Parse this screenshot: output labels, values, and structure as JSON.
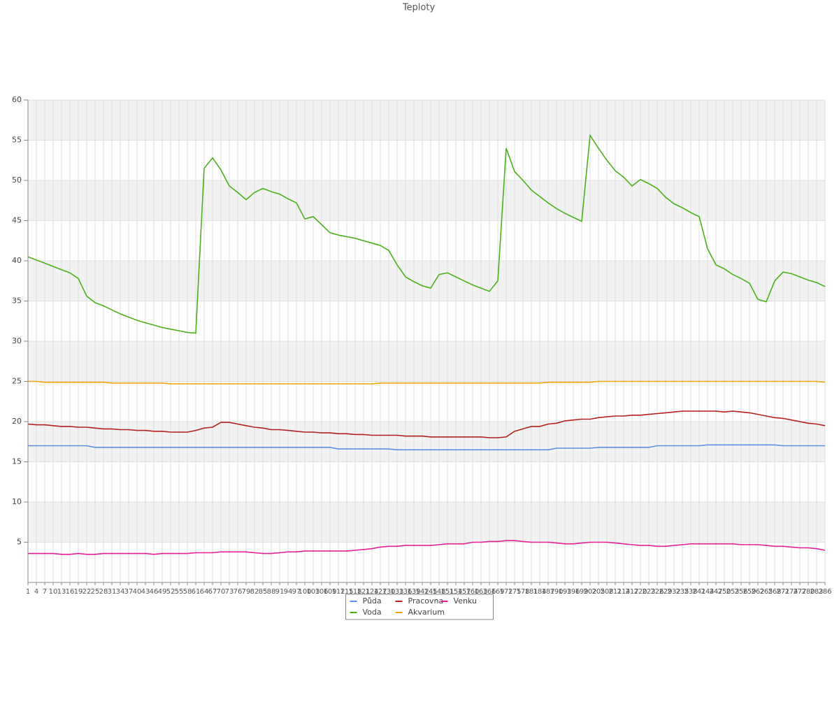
{
  "chart_data": {
    "type": "line",
    "title": "Teploty",
    "categories": [
      "1",
      "4",
      "7",
      "10",
      "13",
      "16",
      "19",
      "22",
      "25",
      "28",
      "31",
      "34",
      "37",
      "40",
      "43",
      "46",
      "49",
      "52",
      "55",
      "58",
      "61",
      "64",
      "67",
      "70",
      "73",
      "76",
      "79",
      "82",
      "85",
      "88",
      "91",
      "94",
      "97",
      "100",
      "103",
      "106",
      "109",
      "112",
      "115",
      "118",
      "121",
      "124",
      "127",
      "130",
      "133",
      "136",
      "139",
      "142",
      "145",
      "148",
      "151",
      "154",
      "157",
      "160",
      "163",
      "166",
      "169",
      "172",
      "175",
      "178",
      "181",
      "184",
      "187",
      "190",
      "193",
      "196",
      "199",
      "202",
      "205",
      "208",
      "211",
      "214",
      "217",
      "220",
      "223",
      "226",
      "229",
      "232",
      "235",
      "238",
      "241",
      "244",
      "247",
      "250",
      "253",
      "256",
      "259",
      "262",
      "265",
      "268",
      "271",
      "274",
      "277",
      "280",
      "283",
      "286"
    ],
    "ylim": [
      0,
      60
    ],
    "yticks": [
      5,
      10,
      15,
      20,
      25,
      30,
      35,
      40,
      45,
      50,
      55,
      60
    ],
    "grid": true,
    "legend": "bottom",
    "series": [
      {
        "name": "Půda",
        "color": "#5b8fe3",
        "values": [
          17.0,
          17.0,
          17.0,
          17.0,
          17.0,
          17.0,
          17.0,
          17.0,
          16.8,
          16.8,
          16.8,
          16.8,
          16.8,
          16.8,
          16.8,
          16.8,
          16.8,
          16.8,
          16.8,
          16.8,
          16.8,
          16.8,
          16.8,
          16.8,
          16.8,
          16.8,
          16.8,
          16.8,
          16.8,
          16.8,
          16.8,
          16.8,
          16.8,
          16.8,
          16.8,
          16.8,
          16.8,
          16.6,
          16.6,
          16.6,
          16.6,
          16.6,
          16.6,
          16.6,
          16.5,
          16.5,
          16.5,
          16.5,
          16.5,
          16.5,
          16.5,
          16.5,
          16.5,
          16.5,
          16.5,
          16.5,
          16.5,
          16.5,
          16.5,
          16.5,
          16.5,
          16.5,
          16.5,
          16.7,
          16.7,
          16.7,
          16.7,
          16.7,
          16.8,
          16.8,
          16.8,
          16.8,
          16.8,
          16.8,
          16.8,
          17.0,
          17.0,
          17.0,
          17.0,
          17.0,
          17.0,
          17.1,
          17.1,
          17.1,
          17.1,
          17.1,
          17.1,
          17.1,
          17.1,
          17.1,
          17.0,
          17.0,
          17.0,
          17.0,
          17.0,
          17.0
        ]
      },
      {
        "name": "Voda",
        "color": "#4cb01a",
        "values": [
          40.5,
          40.1,
          39.7,
          39.3,
          38.9,
          38.5,
          37.8,
          35.6,
          34.8,
          34.4,
          33.9,
          33.4,
          33.0,
          32.6,
          32.3,
          32.0,
          31.7,
          31.5,
          31.3,
          31.1,
          31.0,
          51.5,
          52.8,
          51.3,
          49.3,
          48.5,
          47.6,
          48.5,
          49.0,
          48.6,
          48.3,
          47.7,
          47.2,
          45.2,
          45.5,
          44.5,
          43.5,
          43.2,
          43.0,
          42.8,
          42.5,
          42.2,
          41.9,
          41.3,
          39.5,
          38.0,
          37.4,
          36.9,
          36.6,
          38.3,
          38.5,
          38.0,
          37.5,
          37.0,
          36.6,
          36.2,
          37.5,
          54.0,
          51.1,
          50.0,
          48.8,
          48.0,
          47.2,
          46.5,
          45.9,
          45.4,
          44.9,
          55.6,
          54.0,
          52.5,
          51.2,
          50.4,
          49.3,
          50.1,
          49.6,
          49.0,
          47.9,
          47.1,
          46.6,
          46.0,
          45.5,
          41.5,
          39.5,
          39.0,
          38.3,
          37.8,
          37.2,
          35.2,
          34.9,
          37.5,
          38.6,
          38.4,
          38.0,
          37.6,
          37.3,
          36.8
        ]
      },
      {
        "name": "Pracovna",
        "color": "#b3201f",
        "values": [
          19.7,
          19.6,
          19.6,
          19.5,
          19.4,
          19.4,
          19.3,
          19.3,
          19.2,
          19.1,
          19.1,
          19.0,
          19.0,
          18.9,
          18.9,
          18.8,
          18.8,
          18.7,
          18.7,
          18.7,
          18.9,
          19.2,
          19.3,
          19.9,
          19.9,
          19.7,
          19.5,
          19.3,
          19.2,
          19.0,
          19.0,
          18.9,
          18.8,
          18.7,
          18.7,
          18.6,
          18.6,
          18.5,
          18.5,
          18.4,
          18.4,
          18.3,
          18.3,
          18.3,
          18.3,
          18.2,
          18.2,
          18.2,
          18.1,
          18.1,
          18.1,
          18.1,
          18.1,
          18.1,
          18.1,
          18.0,
          18.0,
          18.1,
          18.8,
          19.1,
          19.4,
          19.4,
          19.7,
          19.8,
          20.1,
          20.2,
          20.3,
          20.3,
          20.5,
          20.6,
          20.7,
          20.7,
          20.8,
          20.8,
          20.9,
          21.0,
          21.1,
          21.2,
          21.3,
          21.3,
          21.3,
          21.3,
          21.3,
          21.2,
          21.3,
          21.2,
          21.1,
          20.9,
          20.7,
          20.5,
          20.4,
          20.2,
          20.0,
          19.8,
          19.7,
          19.5
        ]
      },
      {
        "name": "Akvarium",
        "color": "#f0a30a",
        "values": [
          25.0,
          25.0,
          24.9,
          24.9,
          24.9,
          24.9,
          24.9,
          24.9,
          24.9,
          24.9,
          24.8,
          24.8,
          24.8,
          24.8,
          24.8,
          24.8,
          24.8,
          24.7,
          24.7,
          24.7,
          24.7,
          24.7,
          24.7,
          24.7,
          24.7,
          24.7,
          24.7,
          24.7,
          24.7,
          24.7,
          24.7,
          24.7,
          24.7,
          24.7,
          24.7,
          24.7,
          24.7,
          24.7,
          24.7,
          24.7,
          24.7,
          24.7,
          24.8,
          24.8,
          24.8,
          24.8,
          24.8,
          24.8,
          24.8,
          24.8,
          24.8,
          24.8,
          24.8,
          24.8,
          24.8,
          24.8,
          24.8,
          24.8,
          24.8,
          24.8,
          24.8,
          24.8,
          24.9,
          24.9,
          24.9,
          24.9,
          24.9,
          24.9,
          25.0,
          25.0,
          25.0,
          25.0,
          25.0,
          25.0,
          25.0,
          25.0,
          25.0,
          25.0,
          25.0,
          25.0,
          25.0,
          25.0,
          25.0,
          25.0,
          25.0,
          25.0,
          25.0,
          25.0,
          25.0,
          25.0,
          25.0,
          25.0,
          25.0,
          25.0,
          25.0,
          24.9
        ]
      },
      {
        "name": "Venku",
        "color": "#e41f96",
        "values": [
          3.6,
          3.6,
          3.6,
          3.6,
          3.5,
          3.5,
          3.6,
          3.5,
          3.5,
          3.6,
          3.6,
          3.6,
          3.6,
          3.6,
          3.6,
          3.5,
          3.6,
          3.6,
          3.6,
          3.6,
          3.7,
          3.7,
          3.7,
          3.8,
          3.8,
          3.8,
          3.8,
          3.7,
          3.6,
          3.6,
          3.7,
          3.8,
          3.8,
          3.9,
          3.9,
          3.9,
          3.9,
          3.9,
          3.9,
          4.0,
          4.1,
          4.2,
          4.4,
          4.5,
          4.5,
          4.6,
          4.6,
          4.6,
          4.6,
          4.7,
          4.8,
          4.8,
          4.8,
          5.0,
          5.0,
          5.1,
          5.1,
          5.2,
          5.2,
          5.1,
          5.0,
          5.0,
          5.0,
          4.9,
          4.8,
          4.8,
          4.9,
          5.0,
          5.0,
          5.0,
          4.9,
          4.8,
          4.7,
          4.6,
          4.6,
          4.5,
          4.5,
          4.6,
          4.7,
          4.8,
          4.8,
          4.8,
          4.8,
          4.8,
          4.8,
          4.7,
          4.7,
          4.7,
          4.6,
          4.5,
          4.5,
          4.4,
          4.3,
          4.3,
          4.2,
          4.0
        ]
      }
    ]
  }
}
